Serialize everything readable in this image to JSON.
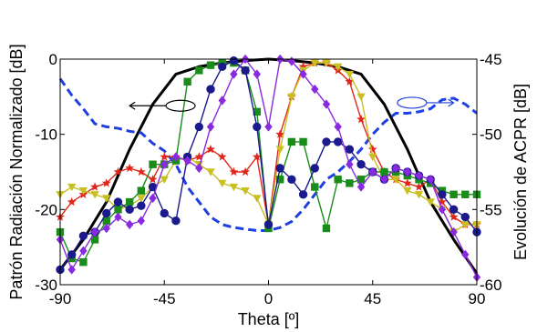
{
  "chart_data": {
    "type": "line",
    "title": "",
    "xlabel": "Theta [º]",
    "ylabel_left": "Patrón Radiación Normalizado [dB]",
    "ylabel_right": "Evolución de ACPR [dB]",
    "xlim": [
      -90,
      90
    ],
    "ylim_left": [
      -30,
      0
    ],
    "ylim_right": [
      -60,
      -45
    ],
    "xticks": [
      -90,
      -45,
      0,
      45,
      90
    ],
    "yticks_left": [
      -30,
      -20,
      -10,
      0
    ],
    "yticks_right": [
      -60,
      -55,
      -50,
      -45
    ],
    "ytick_labels_left": [
      "-30",
      "-20",
      "-10",
      "0"
    ],
    "ytick_labels_right": [
      "-60",
      "-55",
      "-50",
      "-45"
    ],
    "xtick_labels": [
      "-90",
      "-45",
      "0",
      "45",
      "90"
    ],
    "grid": false,
    "series": [
      {
        "axis": "left",
        "color": "#000000",
        "marker": "none",
        "dash": false,
        "width": 3,
        "x": [
          -90,
          -80,
          -70,
          -60,
          -50,
          -40,
          -30,
          -20,
          -10,
          0,
          10,
          20,
          30,
          40,
          50,
          60,
          70,
          80,
          90
        ],
        "y": [
          -28,
          -24,
          -19,
          -12,
          -6,
          -2,
          -1,
          -0.5,
          -0.2,
          0,
          -0.2,
          -0.5,
          -1,
          -2,
          -6,
          -12,
          -19,
          -24,
          -28.5
        ]
      },
      {
        "axis": "right",
        "color": "#1f3fe0",
        "marker": "none",
        "dash": true,
        "width": 3,
        "x": [
          -90,
          -85,
          -80,
          -75,
          -70,
          -65,
          -60,
          -55,
          -50,
          -45,
          -40,
          -35,
          -30,
          -25,
          -20,
          -15,
          -10,
          -5,
          0,
          5,
          10,
          15,
          20,
          25,
          30,
          35,
          40,
          45,
          50,
          55,
          60,
          65,
          70,
          75,
          80,
          85,
          90
        ],
        "y": [
          -46.3,
          -47.4,
          -48.3,
          -49.3,
          -49.5,
          -49.6,
          -49.8,
          -49.9,
          -50.6,
          -51.1,
          -52.0,
          -53.5,
          -54.5,
          -55.5,
          -56.0,
          -56.2,
          -56.3,
          -56.4,
          -56.4,
          -56.2,
          -55.8,
          -55.0,
          -54.0,
          -53.0,
          -52.5,
          -51.8,
          -51.0,
          -50.0,
          -49.2,
          -48.6,
          -48.6,
          -48.5,
          -48.3,
          -47.7,
          -47.6,
          -48.0,
          -48.6
        ]
      },
      {
        "axis": "left",
        "color": "#e0261a",
        "marker": "star",
        "dash": false,
        "width": 1.4,
        "x": [
          -90,
          -85,
          -80,
          -75,
          -70,
          -65,
          -60,
          -55,
          -50,
          -45,
          -40,
          -35,
          -30,
          -25,
          -20,
          -15,
          -10,
          -5,
          0,
          5,
          10,
          15,
          20,
          25,
          30,
          35,
          40,
          45,
          50,
          55,
          60,
          65,
          70,
          75,
          80,
          85,
          90
        ],
        "y": [
          -21,
          -19,
          -18,
          -17,
          -16.5,
          -15,
          -14.5,
          -15,
          -16,
          -13,
          -13,
          -13.5,
          -13,
          -12,
          -13,
          -15,
          -15,
          -13,
          -22,
          -10,
          -5,
          -1,
          -0.5,
          -0.5,
          -1.5,
          -3,
          -8,
          -12,
          -15,
          -16,
          -16.5,
          -17,
          -16,
          -19,
          -21,
          -22,
          -22
        ]
      },
      {
        "axis": "left",
        "color": "#c8c020",
        "marker": "triangle-down",
        "dash": false,
        "width": 1.4,
        "x": [
          -90,
          -85,
          -80,
          -75,
          -70,
          -65,
          -60,
          -55,
          -50,
          -45,
          -40,
          -35,
          -30,
          -25,
          -20,
          -15,
          -10,
          -5,
          0,
          5,
          10,
          15,
          20,
          25,
          30,
          35,
          40,
          45,
          50,
          55,
          60,
          65,
          70,
          75,
          80,
          85,
          90
        ],
        "y": [
          -18,
          -17,
          -17.5,
          -18,
          -18.5,
          -20,
          -19.5,
          -18.5,
          -17,
          -16,
          -13.5,
          -13,
          -14,
          -15,
          -16.5,
          -17,
          -17.5,
          -18.5,
          -22,
          -12,
          -5,
          -1.5,
          -0.5,
          -0.5,
          -1,
          -2,
          -5,
          -13,
          -16,
          -16,
          -17.5,
          -18,
          -19,
          -20,
          -23,
          -22,
          -22
        ]
      },
      {
        "axis": "left",
        "color": "#1a8c1a",
        "marker": "square",
        "dash": false,
        "width": 1.4,
        "x": [
          -90,
          -85,
          -80,
          -75,
          -70,
          -65,
          -60,
          -55,
          -50,
          -45,
          -40,
          -35,
          -30,
          -25,
          -20,
          -15,
          -10,
          -5,
          0,
          5,
          10,
          15,
          20,
          25,
          30,
          35,
          40,
          45,
          50,
          55,
          60,
          65,
          70,
          75,
          80,
          85,
          90
        ],
        "y": [
          -23,
          -26.5,
          -27,
          -24,
          -21.5,
          -20,
          -19,
          -17.5,
          -14,
          -14,
          -13.5,
          -3,
          -1.5,
          -0.8,
          -0.5,
          -0.5,
          -1.5,
          -7,
          -22.5,
          -16,
          -11,
          -11,
          -17,
          -22.5,
          -16,
          -16.5,
          -16,
          -15,
          -15,
          -15,
          -15.5,
          -16,
          -16.5,
          -17.5,
          -18,
          -18,
          -18
        ]
      },
      {
        "axis": "left",
        "color": "#1a1a8c",
        "marker": "circle",
        "dash": false,
        "width": 1.4,
        "x": [
          -90,
          -85,
          -80,
          -75,
          -70,
          -65,
          -60,
          -55,
          -50,
          -45,
          -40,
          -35,
          -30,
          -25,
          -20,
          -15,
          -10,
          -5,
          0,
          5,
          10,
          15,
          20,
          25,
          30,
          35,
          40,
          45,
          50,
          55,
          60,
          65,
          70,
          75,
          80,
          85,
          90
        ],
        "y": [
          -28,
          -26,
          -23.5,
          -23,
          -20.5,
          -19,
          -20,
          -19.5,
          -17,
          -20.5,
          -21.5,
          -13,
          -9,
          -4,
          -1,
          -0.2,
          -1.5,
          -9,
          -22,
          -14.5,
          -16,
          -18,
          -14.5,
          -11,
          -11,
          -12,
          -14,
          -15,
          -16,
          -14.5,
          -15,
          -15.5,
          -16,
          -18,
          -20,
          -21,
          -23
        ]
      },
      {
        "axis": "left",
        "color": "#8a2ae0",
        "marker": "diamond",
        "dash": false,
        "width": 1.4,
        "x": [
          -90,
          -85,
          -80,
          -75,
          -70,
          -65,
          -60,
          -55,
          -50,
          -45,
          -40,
          -35,
          -30,
          -25,
          -20,
          -15,
          -10,
          -5,
          0,
          5,
          10,
          15,
          20,
          25,
          30,
          35,
          40,
          45,
          50,
          55,
          60,
          65,
          70,
          75,
          80,
          85,
          90
        ],
        "y": [
          -24,
          -28,
          -25.5,
          -23,
          -22.5,
          -21,
          -22,
          -21.5,
          -18.5,
          -14,
          -13,
          -13.5,
          -14.5,
          -9,
          -5.5,
          -2,
          0,
          -2,
          -9,
          0,
          -0.3,
          -2,
          -4,
          -6,
          -9,
          -14,
          -17,
          -15,
          -16,
          -14.5,
          -15,
          -15.5,
          -16,
          -20,
          -23,
          -26,
          -29
        ]
      }
    ],
    "annotations": [
      {
        "type": "ellipse-arrow",
        "axis": "left",
        "x": -38,
        "y": -6.2,
        "arrow_to_x": -60,
        "direction": "left"
      },
      {
        "type": "ellipse-arrow",
        "axis": "left",
        "x": 62,
        "y": -5.8,
        "arrow_to_x": 80,
        "direction": "right"
      }
    ]
  }
}
